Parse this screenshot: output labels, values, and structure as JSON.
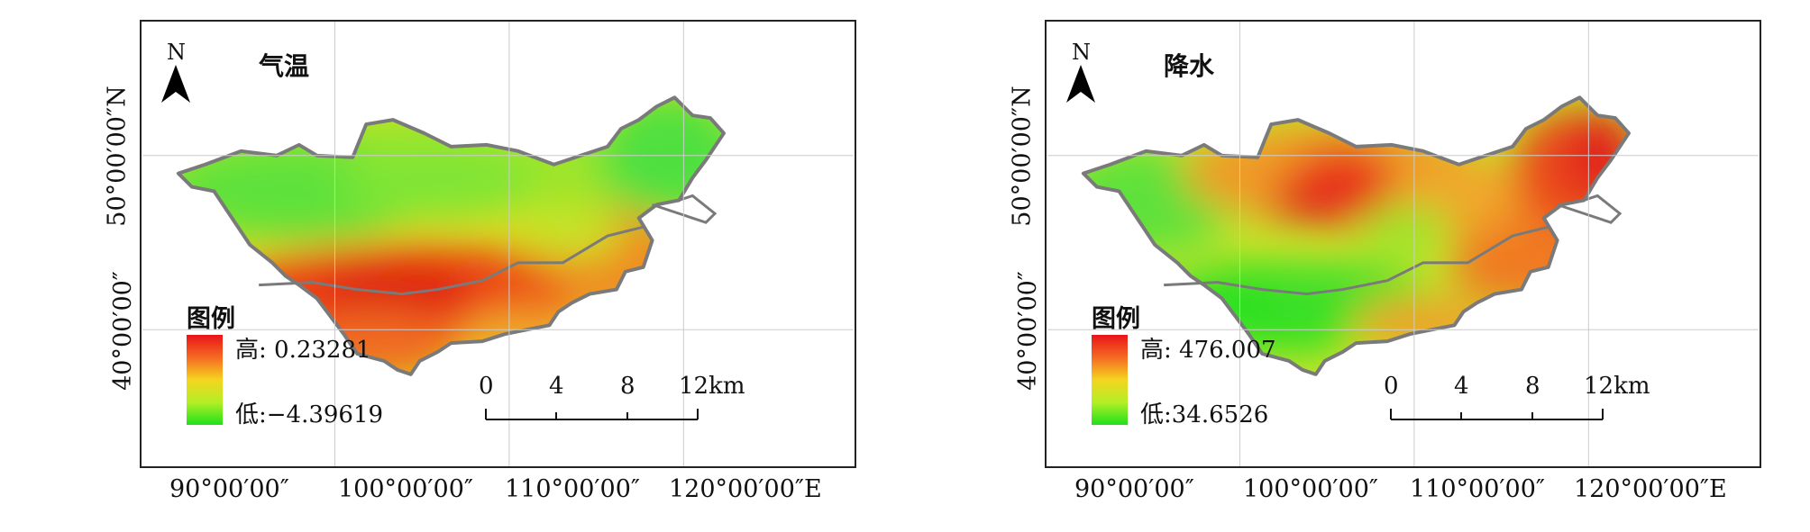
{
  "panels": [
    {
      "title": "气温",
      "north_label": "N",
      "legend": {
        "title": "图例",
        "high": "高: 0.23281",
        "low": "低:−4.39619"
      },
      "scale": {
        "ticks": [
          "0",
          "4",
          "8",
          "12km"
        ]
      },
      "x_ticks": [
        "90°00′00″",
        "100°00′00″",
        "110°00′00″",
        "120°00′00″E"
      ],
      "y_ticks": [
        "50°00′00″N",
        "40°00′00″"
      ]
    },
    {
      "title": "降水",
      "north_label": "N",
      "legend": {
        "title": "图例",
        "high": "高: 476.007",
        "low": "低:34.6526"
      },
      "scale": {
        "ticks": [
          "0",
          "4",
          "8",
          "12km"
        ]
      },
      "x_ticks": [
        "90°00′00″",
        "100°00′00″",
        "110°00′00″",
        "120°00′00″E"
      ],
      "y_ticks": [
        "50°00′00″N",
        "40°00′00″"
      ]
    }
  ],
  "colors": {
    "high": "#e8141a",
    "mid": "#f5d41f",
    "low": "#1fe01a",
    "boundary": "#7a7a7a"
  }
}
